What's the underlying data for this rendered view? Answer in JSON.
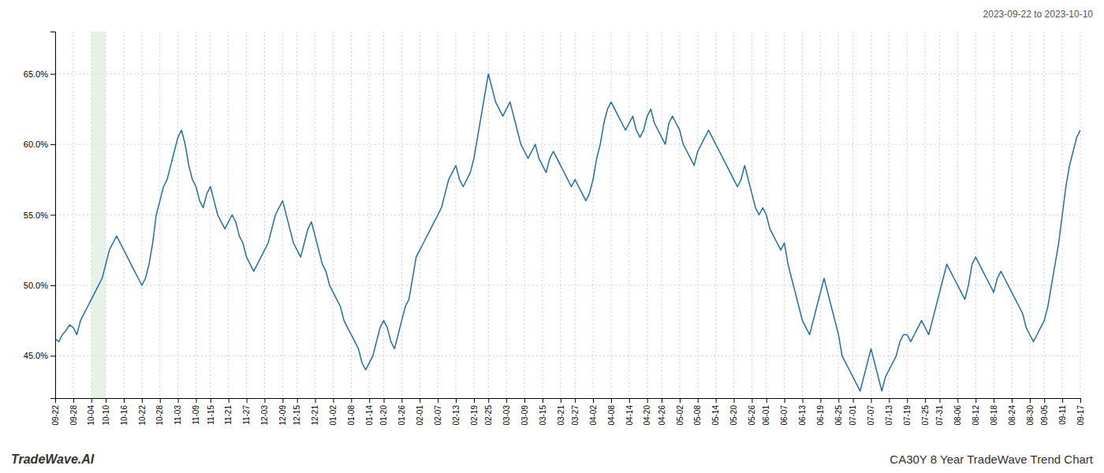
{
  "chart_data": {
    "type": "line",
    "title": "CA30Y 8 Year TradeWave Trend Chart",
    "subtitle": "2023-09-22 to 2023-10-10",
    "annotations": [
      "TradeWave.AI"
    ],
    "color": "#1f6eb5",
    "grid": true,
    "highlight": {
      "start": "10-04",
      "end": "10-10",
      "color": "#d6ead6"
    },
    "ylim": [
      42.0,
      68.0
    ],
    "yticks": [
      {
        "value": 45.0,
        "label": "45.0%"
      },
      {
        "value": 50.0,
        "label": "50.0%"
      },
      {
        "value": 55.0,
        "label": "55.0%"
      },
      {
        "value": 60.0,
        "label": "60.0%"
      },
      {
        "value": 65.0,
        "label": "65.0%"
      }
    ],
    "categories": [
      "09-22",
      null,
      null,
      null,
      null,
      "09-28",
      null,
      null,
      null,
      null,
      "10-04",
      null,
      null,
      null,
      "10-10",
      null,
      null,
      null,
      null,
      "10-16",
      null,
      null,
      null,
      null,
      "10-22",
      null,
      null,
      null,
      null,
      "10-28",
      null,
      null,
      null,
      null,
      "11-03",
      null,
      null,
      null,
      null,
      "11-09",
      null,
      null,
      null,
      "11-15",
      null,
      null,
      null,
      null,
      "11-21",
      null,
      null,
      null,
      null,
      "11-27",
      null,
      null,
      null,
      null,
      "12-03",
      null,
      null,
      null,
      null,
      "12-09",
      null,
      null,
      null,
      "12-15",
      null,
      null,
      null,
      null,
      "12-21",
      null,
      null,
      null,
      null,
      "01-02",
      null,
      null,
      null,
      null,
      "01-08",
      null,
      null,
      null,
      null,
      "01-14",
      null,
      null,
      null,
      "01-20",
      null,
      null,
      null,
      null,
      "01-26",
      null,
      null,
      null,
      null,
      "02-01",
      null,
      null,
      null,
      null,
      "02-07",
      null,
      null,
      null,
      null,
      "02-13",
      null,
      null,
      null,
      null,
      "02-19",
      null,
      null,
      null,
      "02-25",
      null,
      null,
      null,
      null,
      "03-03",
      null,
      null,
      null,
      null,
      "03-09",
      null,
      null,
      null,
      null,
      "03-15",
      null,
      null,
      null,
      null,
      "03-21",
      null,
      null,
      null,
      "03-27",
      null,
      null,
      null,
      null,
      "04-02",
      null,
      null,
      null,
      null,
      "04-08",
      null,
      null,
      null,
      null,
      "04-14",
      null,
      null,
      null,
      null,
      "04-20",
      null,
      null,
      null,
      "04-26",
      null,
      null,
      null,
      null,
      "05-02",
      null,
      null,
      null,
      null,
      "05-08",
      null,
      null,
      null,
      null,
      "05-14",
      null,
      null,
      null,
      null,
      "05-20",
      null,
      null,
      null,
      null,
      "05-26",
      null,
      null,
      null,
      "06-01",
      null,
      null,
      null,
      null,
      "06-07",
      null,
      null,
      null,
      null,
      "06-13",
      null,
      null,
      null,
      null,
      "06-19",
      null,
      null,
      null,
      null,
      "06-25",
      null,
      null,
      null,
      "07-01",
      null,
      null,
      null,
      null,
      "07-07",
      null,
      null,
      null,
      null,
      "07-13",
      null,
      null,
      null,
      null,
      "07-19",
      null,
      null,
      null,
      null,
      "07-25",
      null,
      null,
      null,
      "07-31",
      null,
      null,
      null,
      null,
      "08-06",
      null,
      null,
      null,
      null,
      "08-12",
      null,
      null,
      null,
      null,
      "08-18",
      null,
      null,
      null,
      null,
      "08-24",
      null,
      null,
      null,
      null,
      "08-30",
      null,
      null,
      null,
      "09-05",
      null,
      null,
      null,
      null,
      "09-11",
      null,
      null,
      null,
      null,
      "09-17"
    ],
    "values": [
      46.2,
      46.0,
      46.5,
      46.8,
      47.2,
      47.0,
      46.5,
      47.5,
      48.0,
      48.5,
      49.0,
      49.5,
      50.0,
      50.5,
      51.5,
      52.5,
      53.0,
      53.5,
      53.0,
      52.5,
      52.0,
      51.5,
      51.0,
      50.5,
      50.0,
      50.5,
      51.5,
      53.0,
      55.0,
      56.0,
      57.0,
      57.5,
      58.5,
      59.5,
      60.5,
      61.0,
      60.0,
      58.5,
      57.5,
      57.0,
      56.0,
      55.5,
      56.5,
      57.0,
      56.0,
      55.0,
      54.5,
      54.0,
      54.5,
      55.0,
      54.5,
      53.5,
      53.0,
      52.0,
      51.5,
      51.0,
      51.5,
      52.0,
      52.5,
      53.0,
      54.0,
      55.0,
      55.5,
      56.0,
      55.0,
      54.0,
      53.0,
      52.5,
      52.0,
      53.0,
      54.0,
      54.5,
      53.5,
      52.5,
      51.5,
      51.0,
      50.0,
      49.5,
      49.0,
      48.5,
      47.5,
      47.0,
      46.5,
      46.0,
      45.5,
      44.5,
      44.0,
      44.5,
      45.0,
      46.0,
      47.0,
      47.5,
      47.0,
      46.0,
      45.5,
      46.5,
      47.5,
      48.5,
      49.0,
      50.5,
      52.0,
      52.5,
      53.0,
      53.5,
      54.0,
      54.5,
      55.0,
      55.5,
      56.5,
      57.5,
      58.0,
      58.5,
      57.5,
      57.0,
      57.5,
      58.0,
      59.0,
      60.5,
      62.0,
      63.5,
      65.0,
      64.0,
      63.0,
      62.5,
      62.0,
      62.5,
      63.0,
      62.0,
      61.0,
      60.0,
      59.5,
      59.0,
      59.5,
      60.0,
      59.0,
      58.5,
      58.0,
      59.0,
      59.5,
      59.0,
      58.5,
      58.0,
      57.5,
      57.0,
      57.5,
      57.0,
      56.5,
      56.0,
      56.5,
      57.5,
      59.0,
      60.0,
      61.5,
      62.5,
      63.0,
      62.5,
      62.0,
      61.5,
      61.0,
      61.5,
      62.0,
      61.0,
      60.5,
      61.0,
      62.0,
      62.5,
      61.5,
      61.0,
      60.5,
      60.0,
      61.5,
      62.0,
      61.5,
      61.0,
      60.0,
      59.5,
      59.0,
      58.5,
      59.5,
      60.0,
      60.5,
      61.0,
      60.5,
      60.0,
      59.5,
      59.0,
      58.5,
      58.0,
      57.5,
      57.0,
      57.5,
      58.5,
      57.5,
      56.5,
      55.5,
      55.0,
      55.5,
      55.0,
      54.0,
      53.5,
      53.0,
      52.5,
      53.0,
      51.5,
      50.5,
      49.5,
      48.5,
      47.5,
      47.0,
      46.5,
      47.5,
      48.5,
      49.5,
      50.5,
      49.5,
      48.5,
      47.5,
      46.5,
      45.0,
      44.5,
      44.0,
      43.5,
      43.0,
      42.5,
      43.5,
      44.5,
      45.5,
      44.5,
      43.5,
      42.5,
      43.5,
      44.0,
      44.5,
      45.0,
      46.0,
      46.5,
      46.5,
      46.0,
      46.5,
      47.0,
      47.5,
      47.0,
      46.5,
      47.5,
      48.5,
      49.5,
      50.5,
      51.5,
      51.0,
      50.5,
      50.0,
      49.5,
      49.0,
      50.0,
      51.5,
      52.0,
      51.5,
      51.0,
      50.5,
      50.0,
      49.5,
      50.5,
      51.0,
      50.5,
      50.0,
      49.5,
      49.0,
      48.5,
      48.0,
      47.0,
      46.5,
      46.0,
      46.5,
      47.0,
      47.5,
      48.5,
      50.0,
      51.5,
      53.0,
      55.0,
      57.0,
      58.5,
      59.5,
      60.5,
      61.0
    ]
  }
}
